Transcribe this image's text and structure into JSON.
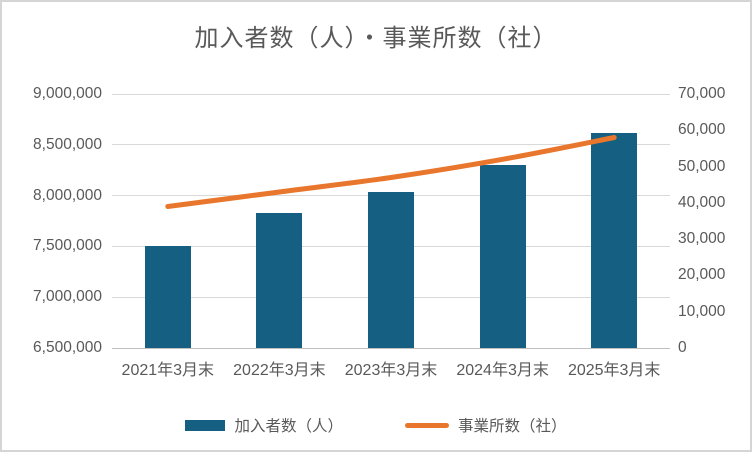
{
  "chart_data": {
    "type": "combo",
    "title": "加入者数（人）・事業所数（社）",
    "categories": [
      "2021年3月末",
      "2022年3月末",
      "2023年3月末",
      "2024年3月末",
      "2025年3月末"
    ],
    "series": [
      {
        "name": "加入者数（人）",
        "type": "bar",
        "axis": "left",
        "values": [
          7500000,
          7830000,
          8040000,
          8300000,
          8620000
        ],
        "color": "#156082"
      },
      {
        "name": "事業所数（社）",
        "type": "line",
        "axis": "right",
        "values": [
          39000,
          43000,
          47000,
          52000,
          58000
        ],
        "color": "#E8762C"
      }
    ],
    "left_axis": {
      "min": 6500000,
      "max": 9000000,
      "step": 500000,
      "ticks": [
        {
          "value": 9000000,
          "label": "9,000,000"
        },
        {
          "value": 8500000,
          "label": "8,500,000"
        },
        {
          "value": 8000000,
          "label": "8,000,000"
        },
        {
          "value": 7500000,
          "label": "7,500,000"
        },
        {
          "value": 7000000,
          "label": "7,000,000"
        },
        {
          "value": 6500000,
          "label": "6,500,000"
        }
      ]
    },
    "right_axis": {
      "min": 0,
      "max": 70000,
      "step": 10000,
      "ticks": [
        {
          "value": 70000,
          "label": "70,000"
        },
        {
          "value": 60000,
          "label": "60,000"
        },
        {
          "value": 50000,
          "label": "50,000"
        },
        {
          "value": 40000,
          "label": "40,000"
        },
        {
          "value": 30000,
          "label": "30,000"
        },
        {
          "value": 20000,
          "label": "20,000"
        },
        {
          "value": 10000,
          "label": "10,000"
        },
        {
          "value": 0,
          "label": "0"
        }
      ]
    },
    "grid": true,
    "legend_position": "bottom",
    "colors": {
      "background": "#FFFFFF",
      "border": "#D5D5D5",
      "grid": "#D9D9D9",
      "axis_line": "#BFBFBF",
      "text": "#595959"
    }
  }
}
